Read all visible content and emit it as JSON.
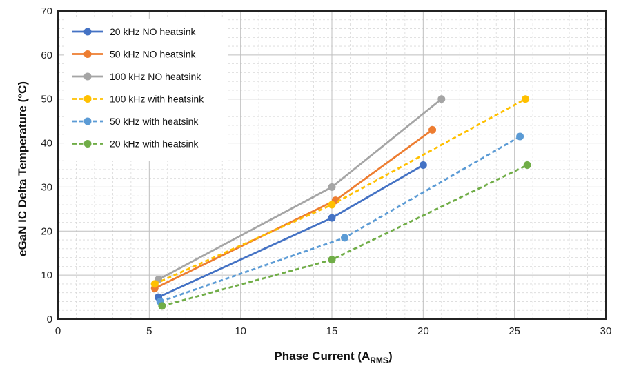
{
  "chart_data": {
    "type": "line",
    "title": "",
    "xlabel": "Phase Current (A",
    "xlabel_sub": "RMS",
    "xlabel_close": ")",
    "ylabel": "eGaN IC Delta Temperature (°C)",
    "xlim": [
      0,
      30
    ],
    "ylim": [
      0,
      70
    ],
    "xticks": [
      0,
      5,
      10,
      15,
      20,
      25,
      30
    ],
    "yticks": [
      0,
      10,
      20,
      30,
      40,
      50,
      60,
      70
    ],
    "grid": true,
    "minor_grid": true,
    "legend_position": "top-left",
    "series": [
      {
        "name": "20 kHz NO heatsink",
        "color": "#4472C4",
        "dashed": false,
        "x": [
          5.5,
          15,
          20
        ],
        "y": [
          5,
          23,
          35
        ]
      },
      {
        "name": "50 kHz NO heatsink",
        "color": "#ED7D31",
        "dashed": false,
        "x": [
          5.3,
          15.2,
          20.5
        ],
        "y": [
          7,
          27,
          43
        ]
      },
      {
        "name": "100 kHz NO heatsink",
        "color": "#A5A5A5",
        "dashed": false,
        "x": [
          5.5,
          15,
          21
        ],
        "y": [
          9,
          30,
          50
        ]
      },
      {
        "name": "100 kHz with heatsink",
        "color": "#FFC000",
        "dashed": true,
        "x": [
          5.3,
          15,
          25.6
        ],
        "y": [
          8,
          26,
          50
        ]
      },
      {
        "name": "50 kHz with heatsink",
        "color": "#5B9BD5",
        "dashed": true,
        "x": [
          5.6,
          15.7,
          25.3
        ],
        "y": [
          4,
          18.5,
          41.5
        ]
      },
      {
        "name": "20 kHz with heatsink",
        "color": "#70AD47",
        "dashed": true,
        "x": [
          5.7,
          15,
          25.7
        ],
        "y": [
          3,
          13.5,
          35
        ]
      }
    ]
  }
}
